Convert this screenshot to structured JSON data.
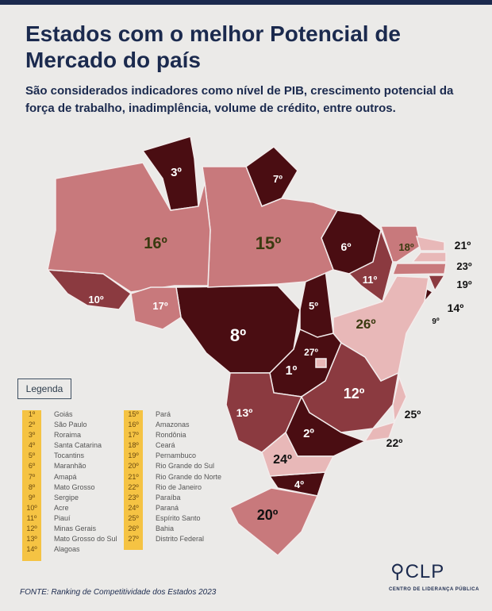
{
  "title": "Estados com o melhor Potencial de Mercado do país",
  "subtitle": "São considerados indicadores como nível de PIB, crescimento potencial da força de trabalho, inadimplência, volume de crédito, entre outros.",
  "legend_title": "Legenda",
  "ranking": [
    {
      "rank": "1º",
      "state": "Goiás"
    },
    {
      "rank": "2º",
      "state": "São Paulo"
    },
    {
      "rank": "3º",
      "state": "Roraima"
    },
    {
      "rank": "4º",
      "state": "Santa Catarina"
    },
    {
      "rank": "5º",
      "state": "Tocantins"
    },
    {
      "rank": "6º",
      "state": "Maranhão"
    },
    {
      "rank": "7º",
      "state": "Amapá"
    },
    {
      "rank": "8º",
      "state": "Mato Grosso"
    },
    {
      "rank": "9º",
      "state": "Sergipe"
    },
    {
      "rank": "10º",
      "state": "Acre"
    },
    {
      "rank": "11º",
      "state": "Piauí"
    },
    {
      "rank": "12º",
      "state": "Minas Gerais"
    },
    {
      "rank": "13º",
      "state": "Mato Grosso do Sul"
    },
    {
      "rank": "14º",
      "state": "Alagoas"
    },
    {
      "rank": "15º",
      "state": "Pará"
    },
    {
      "rank": "16º",
      "state": "Amazonas"
    },
    {
      "rank": "17º",
      "state": "Rondônia"
    },
    {
      "rank": "18º",
      "state": "Ceará"
    },
    {
      "rank": "19º",
      "state": "Pernambuco"
    },
    {
      "rank": "20º",
      "state": "Rio Grande do Sul"
    },
    {
      "rank": "21º",
      "state": "Rio Grande do Norte"
    },
    {
      "rank": "22º",
      "state": "Rio de Janeiro"
    },
    {
      "rank": "23º",
      "state": "Paraíba"
    },
    {
      "rank": "24º",
      "state": "Paraná"
    },
    {
      "rank": "25º",
      "state": "Espírito Santo"
    },
    {
      "rank": "26º",
      "state": "Bahia"
    },
    {
      "rank": "27º",
      "state": "Distrito Federal"
    }
  ],
  "colors": {
    "dark": "#4a0d12",
    "mid": "#8b3a40",
    "light": "#c8797c",
    "pale": "#e8b8b8",
    "title": "#1b2a4e",
    "legend": "#f5c343"
  },
  "source": "FONTE: Ranking de Competitividade dos Estados 2023",
  "logo": {
    "name": "CLP",
    "tagline": "CENTRO DE LIDERANÇA PÚBLICA"
  }
}
